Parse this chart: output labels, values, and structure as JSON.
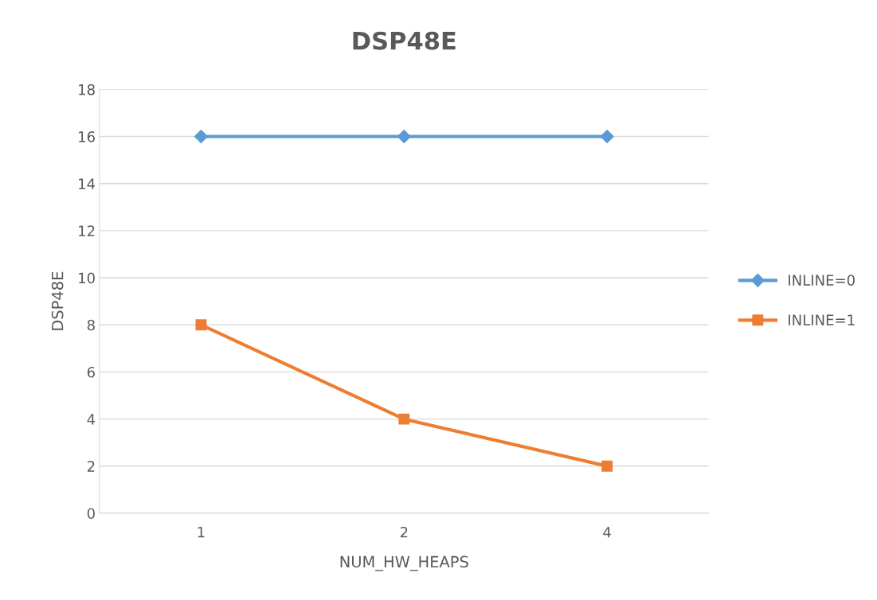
{
  "chart_data": {
    "type": "line",
    "title": "DSP48E",
    "xlabel": "NUM_HW_HEAPS",
    "ylabel": "DSP48E",
    "categories": [
      "1",
      "2",
      "4"
    ],
    "series": [
      {
        "name": "INLINE=0",
        "color": "#5b9bd5",
        "marker": "diamond",
        "values": [
          16,
          16,
          16
        ]
      },
      {
        "name": "INLINE=1",
        "color": "#ed7d31",
        "marker": "square",
        "values": [
          8,
          4,
          2
        ]
      }
    ],
    "ylim": [
      0,
      18
    ],
    "yticks": [
      0,
      2,
      4,
      6,
      8,
      10,
      12,
      14,
      16,
      18
    ],
    "grid": "y",
    "legend": "right",
    "line_style": "solid"
  }
}
